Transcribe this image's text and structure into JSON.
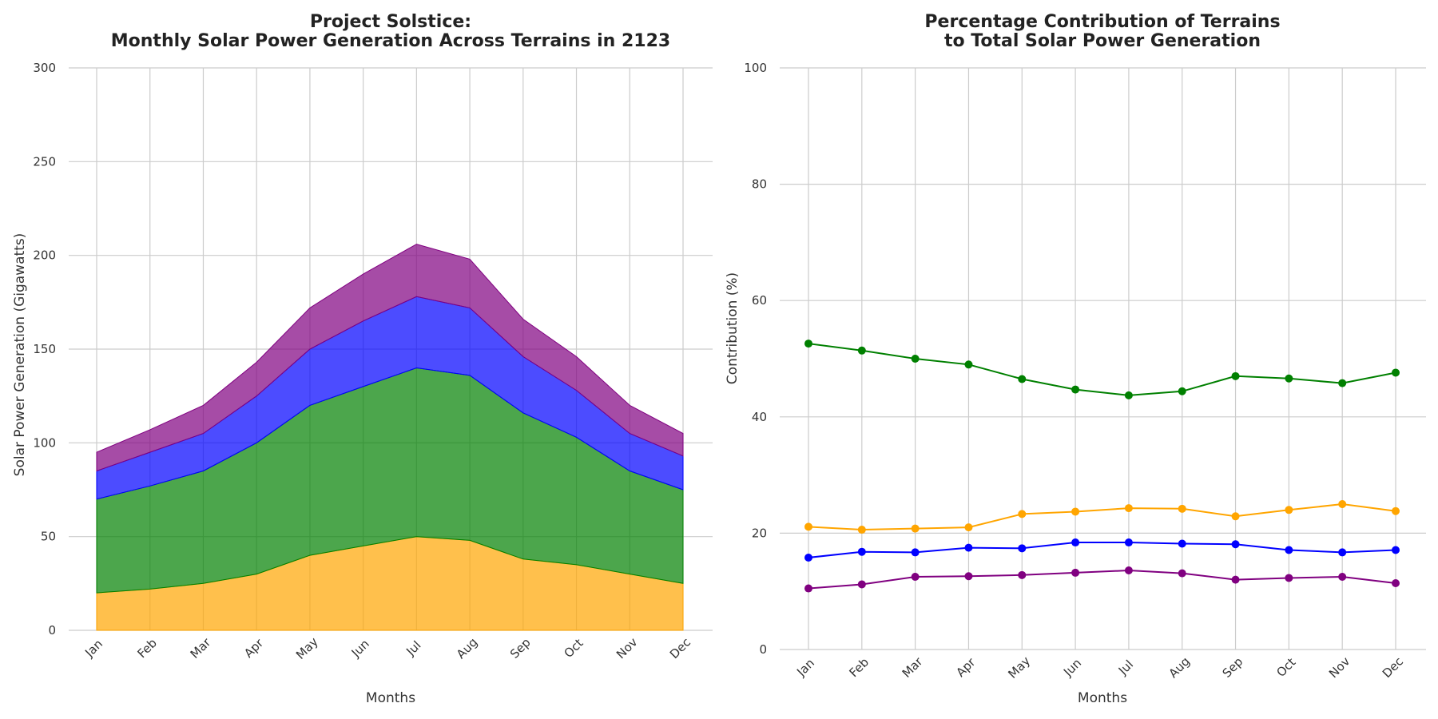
{
  "chart_data": [
    {
      "type": "area",
      "stacked": true,
      "title_line1": "Project Solstice:",
      "title_line2": "Monthly Solar Power Generation Across Terrains in 2123",
      "xlabel": "Months",
      "ylabel": "Solar Power Generation (Gigawatts)",
      "ylim": [
        0,
        300
      ],
      "yticks": [
        "0",
        "50",
        "100",
        "150",
        "200",
        "250",
        "300"
      ],
      "categories": [
        "Jan",
        "Feb",
        "Mar",
        "Apr",
        "May",
        "Jun",
        "Jul",
        "Aug",
        "Sep",
        "Oct",
        "Nov",
        "Dec"
      ],
      "grid": true,
      "series": [
        {
          "color": "#FFA500",
          "values": [
            20,
            22,
            25,
            30,
            40,
            45,
            50,
            48,
            38,
            35,
            30,
            25
          ]
        },
        {
          "color": "#008000",
          "values": [
            50,
            55,
            60,
            70,
            80,
            85,
            90,
            88,
            78,
            68,
            55,
            50
          ]
        },
        {
          "color": "#0000FF",
          "values": [
            15,
            18,
            20,
            25,
            30,
            35,
            38,
            36,
            30,
            25,
            20,
            18
          ]
        },
        {
          "color": "#800080",
          "values": [
            10,
            12,
            15,
            18,
            22,
            25,
            28,
            26,
            20,
            18,
            15,
            12
          ]
        }
      ]
    },
    {
      "type": "line",
      "title_line1": "Percentage Contribution of Terrains",
      "title_line2": "to Total Solar Power Generation",
      "xlabel": "Months",
      "ylabel": "Contribution (%)",
      "ylim": [
        0,
        100
      ],
      "yticks": [
        "0",
        "20",
        "40",
        "60",
        "80",
        "100"
      ],
      "categories": [
        "Jan",
        "Feb",
        "Mar",
        "Apr",
        "May",
        "Jun",
        "Jul",
        "Aug",
        "Sep",
        "Oct",
        "Nov",
        "Dec"
      ],
      "grid": true,
      "series": [
        {
          "color": "#008000",
          "values": [
            52.6,
            51.4,
            50.0,
            49.0,
            46.5,
            44.7,
            43.7,
            44.4,
            47.0,
            46.6,
            45.8,
            47.6
          ]
        },
        {
          "color": "#FFA500",
          "values": [
            21.1,
            20.6,
            20.8,
            21.0,
            23.3,
            23.7,
            24.3,
            24.2,
            22.9,
            24.0,
            25.0,
            23.8
          ]
        },
        {
          "color": "#0000FF",
          "values": [
            15.8,
            16.8,
            16.7,
            17.5,
            17.4,
            18.4,
            18.4,
            18.2,
            18.1,
            17.1,
            16.7,
            17.1
          ]
        },
        {
          "color": "#800080",
          "values": [
            10.5,
            11.2,
            12.5,
            12.6,
            12.8,
            13.2,
            13.6,
            13.1,
            12.0,
            12.3,
            12.5,
            11.4
          ]
        }
      ]
    }
  ]
}
